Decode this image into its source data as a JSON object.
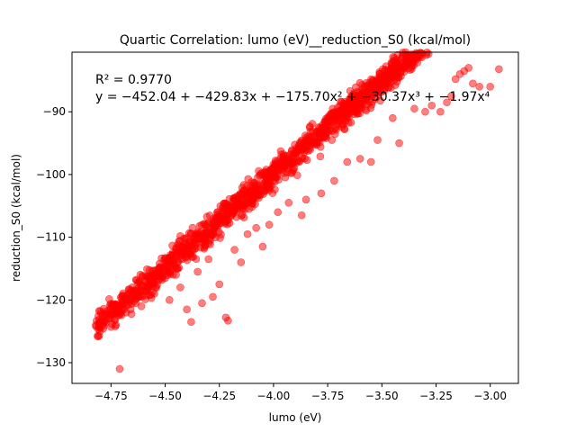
{
  "chart_data": {
    "type": "scatter",
    "title": "Quartic Correlation: lumo (eV)__reduction_S0 (kcal/mol)",
    "xlabel": "lumo (eV)",
    "ylabel": "reduction_S0 (kcal/mol)",
    "xlim": [
      -4.93,
      -2.87
    ],
    "ylim": [
      -133.3,
      -80.5
    ],
    "xticks": [
      -4.75,
      -4.5,
      -4.25,
      -4.0,
      -3.75,
      -3.5,
      -3.25,
      -3.0
    ],
    "xtick_labels": [
      "−4.75",
      "−4.50",
      "−4.25",
      "−4.00",
      "−3.75",
      "−3.50",
      "−3.25",
      "−3.00"
    ],
    "yticks": [
      -130,
      -120,
      -110,
      -100,
      -90
    ],
    "ytick_labels": [
      "−130",
      "−120",
      "−110",
      "−100",
      "−90"
    ],
    "grid": false,
    "legend": "none",
    "marker_color": "#ff0000",
    "marker_alpha": 0.5,
    "annotation": {
      "r2": "R² = 0.9770",
      "equation": "y = −452.04 + −429.83x + −175.70x² + −30.37x³ + −1.97x⁴"
    },
    "trend": {
      "slope": 29.63,
      "intercept": 18.62,
      "spread": 1.6,
      "x_min": -4.82,
      "x_max": -3.25,
      "count": 1400
    },
    "points": [
      [
        -4.82,
        -124.0
      ],
      [
        -4.76,
        -123.0
      ],
      [
        -4.75,
        -124.3
      ],
      [
        -4.73,
        -124.2
      ],
      [
        -4.72,
        -121.0
      ],
      [
        -4.71,
        -131.0
      ],
      [
        -4.7,
        -120.5
      ],
      [
        -4.68,
        -122.0
      ],
      [
        -4.66,
        -120.0
      ],
      [
        -4.61,
        -121.0
      ],
      [
        -4.55,
        -119.0
      ],
      [
        -4.54,
        -118.0
      ],
      [
        -4.5,
        -116.5
      ],
      [
        -4.48,
        -120.0
      ],
      [
        -4.4,
        -121.5
      ],
      [
        -4.38,
        -123.5
      ],
      [
        -4.43,
        -118.0
      ],
      [
        -4.33,
        -120.5
      ],
      [
        -4.28,
        -119.5
      ],
      [
        -4.25,
        -117.5
      ],
      [
        -4.21,
        -123.3
      ],
      [
        -4.22,
        -122.8
      ],
      [
        -4.15,
        -114.0
      ],
      [
        -4.05,
        -111.5
      ],
      [
        -3.98,
        -106.0
      ],
      [
        -3.87,
        -106.5
      ],
      [
        -3.72,
        -101.0
      ],
      [
        -3.55,
        -98.0
      ],
      [
        -3.42,
        -95.0
      ],
      [
        -3.3,
        -90.0
      ],
      [
        -3.23,
        -90.0
      ],
      [
        -3.2,
        -88.5
      ],
      [
        -3.18,
        -87.5
      ],
      [
        -3.16,
        -84.8
      ],
      [
        -3.14,
        -84.0
      ],
      [
        -3.12,
        -83.5
      ],
      [
        -3.1,
        -83.0
      ],
      [
        -3.08,
        -85.5
      ],
      [
        -3.05,
        -86.0
      ],
      [
        -3.0,
        -86.0
      ],
      [
        -2.96,
        -83.2
      ],
      [
        -3.27,
        -89.0
      ],
      [
        -3.35,
        -89.5
      ],
      [
        -3.45,
        -91.0
      ],
      [
        -3.52,
        -94.5
      ],
      [
        -3.6,
        -97.5
      ],
      [
        -3.66,
        -98.0
      ],
      [
        -3.78,
        -103.0
      ],
      [
        -3.85,
        -104.0
      ],
      [
        -3.93,
        -104.5
      ],
      [
        -4.02,
        -108.0
      ],
      [
        -4.08,
        -108.5
      ],
      [
        -4.12,
        -109.5
      ],
      [
        -4.18,
        -112.0
      ],
      [
        -4.3,
        -113.5
      ],
      [
        -4.35,
        -115.5
      ],
      [
        -4.45,
        -116.0
      ],
      [
        -4.58,
        -118.0
      ],
      [
        -4.62,
        -119.5
      ],
      [
        -4.66,
        -121.5
      ]
    ]
  }
}
